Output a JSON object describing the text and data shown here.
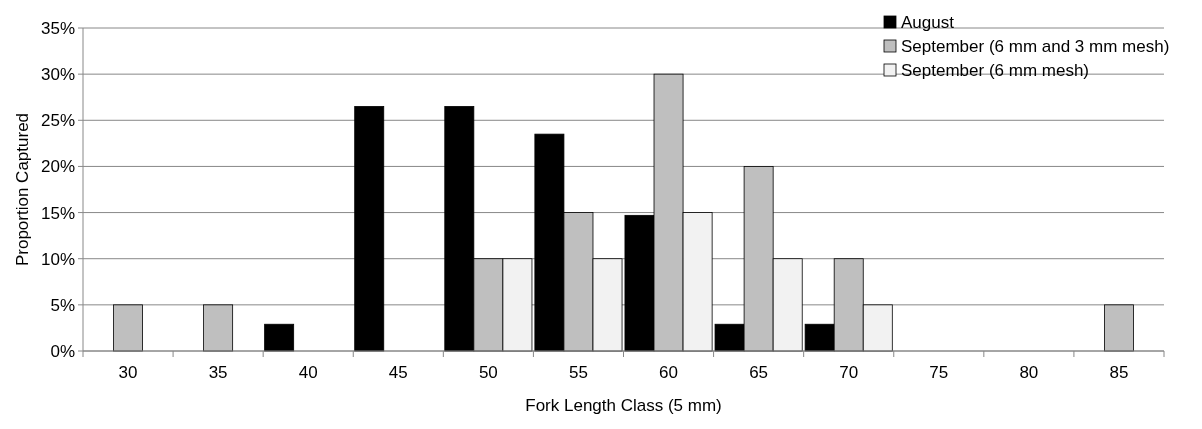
{
  "chart_data": {
    "type": "bar",
    "xlabel": "Fork Length Class (5 mm)",
    "ylabel": "Proportion Captured",
    "categories": [
      "30",
      "35",
      "40",
      "45",
      "50",
      "55",
      "60",
      "65",
      "70",
      "75",
      "80",
      "85"
    ],
    "series": [
      {
        "name": "August",
        "color": "#000000",
        "values": [
          null,
          null,
          2.9,
          26.5,
          26.5,
          23.5,
          14.7,
          2.9,
          2.9,
          null,
          null,
          null
        ]
      },
      {
        "name": "September (6 mm and 3 mm mesh)",
        "color": "#bfbfbf",
        "values": [
          5,
          5,
          null,
          null,
          10,
          15,
          30,
          20,
          10,
          null,
          null,
          5
        ]
      },
      {
        "name": "September (6 mm mesh)",
        "color": "#f2f2f2",
        "values": [
          null,
          null,
          null,
          null,
          10,
          10,
          15,
          10,
          5,
          null,
          null,
          null
        ]
      }
    ],
    "ylim": [
      0,
      35
    ],
    "yticks": [
      {
        "value": 0,
        "label": "0%"
      },
      {
        "value": 5,
        "label": "5%"
      },
      {
        "value": 10,
        "label": "10%"
      },
      {
        "value": 15,
        "label": "15%"
      },
      {
        "value": 20,
        "label": "20%"
      },
      {
        "value": 25,
        "label": "25%"
      },
      {
        "value": 30,
        "label": "30%"
      },
      {
        "value": 35,
        "label": "35%"
      }
    ],
    "grid": "y",
    "legend": "top right"
  }
}
